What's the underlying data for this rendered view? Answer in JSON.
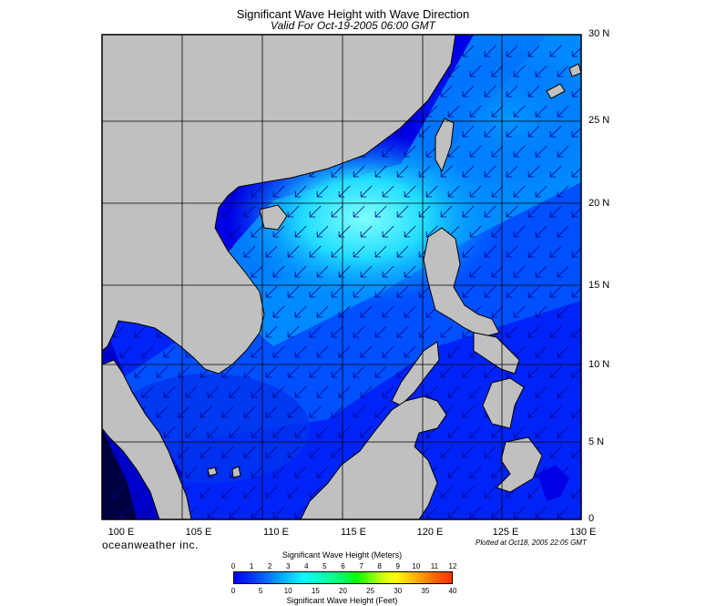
{
  "header": {
    "title": "Significant Wave Height with Wave Direction",
    "subtitle": "Valid For Oct-19-2005 06:00 GMT"
  },
  "map": {
    "lon_range": [
      100,
      130
    ],
    "lat_range": [
      0,
      30
    ],
    "lat_labels": [
      "30 N",
      "25 N",
      "20 N",
      "15 N",
      "10 N",
      "5 N",
      "0"
    ],
    "lon_labels": [
      "100 E",
      "105 E",
      "110 E",
      "115 E",
      "120 E",
      "125 E",
      "130 E"
    ],
    "wave_direction": "from northeast toward southwest",
    "colors": {
      "land": "#c0c0c0",
      "deep_sea": "#0000e0",
      "mid_sea": "#0055ff",
      "high_sea": "#00ccff",
      "peak_sea": "#66ffff",
      "arrow": "#000088"
    }
  },
  "footer": {
    "brand": "oceanweather inc.",
    "plotted": "Plotted at Oct18, 2005 22:05 GMT"
  },
  "colorbar": {
    "title_meters": "Significant Wave Height (Meters)",
    "title_feet": "Significant Wave Height (Feet)",
    "meter_ticks": [
      "0",
      "1",
      "2",
      "3",
      "4",
      "5",
      "6",
      "7",
      "8",
      "9",
      "10",
      "11",
      "12"
    ],
    "feet_ticks": [
      "0",
      "5",
      "10",
      "15",
      "20",
      "25",
      "30",
      "35",
      "40"
    ]
  }
}
